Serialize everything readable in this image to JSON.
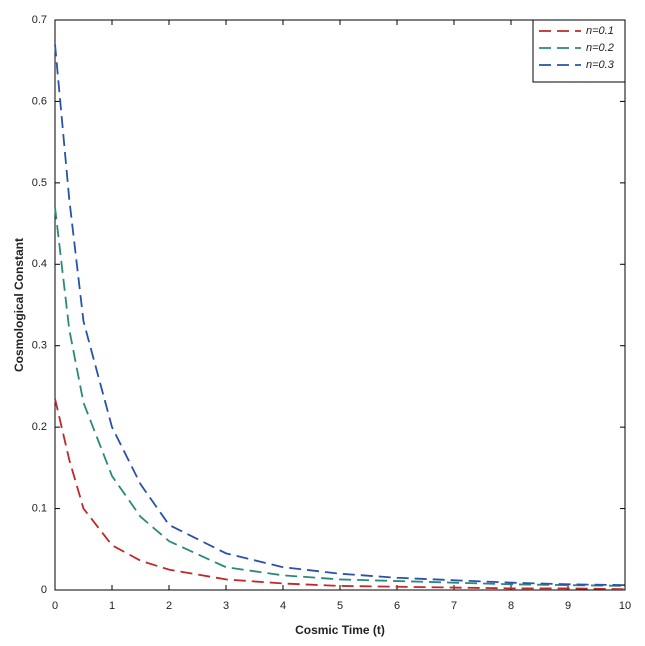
{
  "chart_data": {
    "type": "line",
    "xlabel": "Cosmic Time (t)",
    "ylabel": "Cosmological Constant",
    "x": [
      0,
      0.25,
      0.5,
      1,
      1.5,
      2,
      3,
      4,
      5,
      6,
      7,
      8,
      9,
      10
    ],
    "series": [
      {
        "name": "n=0.1",
        "color": "#c0282a",
        "values": [
          0.235,
          0.16,
          0.1,
          0.055,
          0.036,
          0.025,
          0.013,
          0.008,
          0.005,
          0.004,
          0.003,
          0.002,
          0.002,
          0.001
        ]
      },
      {
        "name": "n=0.2",
        "color": "#2a8a7a",
        "values": [
          0.47,
          0.32,
          0.23,
          0.14,
          0.09,
          0.06,
          0.028,
          0.018,
          0.013,
          0.011,
          0.009,
          0.007,
          0.006,
          0.005
        ]
      },
      {
        "name": "n=0.3",
        "color": "#2a52a8",
        "values": [
          0.67,
          0.48,
          0.33,
          0.2,
          0.13,
          0.08,
          0.045,
          0.028,
          0.02,
          0.015,
          0.012,
          0.009,
          0.007,
          0.006
        ]
      }
    ],
    "xlim": [
      0,
      10
    ],
    "xticks": [
      0,
      1,
      2,
      3,
      4,
      5,
      6,
      7,
      8,
      9,
      10
    ],
    "ylim": [
      0,
      0.7
    ],
    "yticks": [
      0,
      0.1,
      0.2,
      0.3,
      0.4,
      0.5,
      0.6,
      0.7
    ],
    "legend": "upper-right",
    "dashed": true
  }
}
